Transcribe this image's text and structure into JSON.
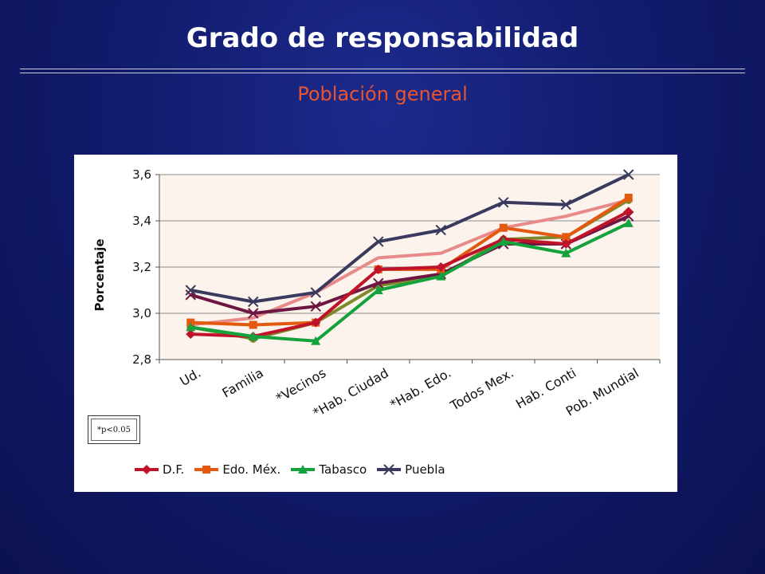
{
  "slide": {
    "title": "Grado de responsabilidad",
    "subtitle": "Población general",
    "footnote": "*p<0.05"
  },
  "colors": {
    "background": "#121c6e",
    "subtitle": "#e8552f",
    "plot_area": "#fcf3ec",
    "gridline": "#8c8c8c"
  },
  "chart_data": {
    "type": "line",
    "title": "",
    "xlabel": "",
    "ylabel": "Porcentaje",
    "ylim": [
      2.8,
      3.6
    ],
    "yticks": [
      "2,8",
      "3,0",
      "3,2",
      "3,4",
      "3,6"
    ],
    "grid": true,
    "legend_position": "bottom",
    "categories": [
      "Ud.",
      "Familia",
      "*Vecinos",
      "*Hab. Ciudad",
      "*Hab. Edo.",
      "Todos Mex.",
      "Hab. Conti",
      "Pob. Mundial"
    ],
    "series": [
      {
        "name": "D.F.",
        "color": "#c0122b",
        "marker": "diamond",
        "values": [
          2.91,
          2.9,
          2.96,
          3.19,
          3.2,
          3.32,
          3.3,
          3.44
        ],
        "legend": true
      },
      {
        "name": "Edo. Méx.",
        "color": "#e2590f",
        "marker": "square",
        "values": [
          2.96,
          2.95,
          2.96,
          3.19,
          3.19,
          3.37,
          3.33,
          3.5
        ],
        "legend": true
      },
      {
        "name": "Tabasco",
        "color": "#13a23c",
        "marker": "triangle",
        "values": [
          2.94,
          2.9,
          2.88,
          3.1,
          3.16,
          3.31,
          3.26,
          3.39
        ],
        "legend": true
      },
      {
        "name": "Puebla",
        "color": "#3a3a5e",
        "marker": "x",
        "values": [
          3.1,
          3.05,
          3.09,
          3.31,
          3.36,
          3.48,
          3.47,
          3.6
        ],
        "legend": true
      },
      {
        "name": "",
        "color": "#6e1642",
        "marker": "x",
        "values": [
          3.08,
          3.0,
          3.03,
          3.13,
          3.17,
          3.3,
          3.3,
          3.42
        ],
        "legend": false
      },
      {
        "name": "",
        "color": "#7d8a2c",
        "marker": "circle",
        "values": [
          2.94,
          2.89,
          2.96,
          3.12,
          3.16,
          3.32,
          3.33,
          3.49
        ],
        "legend": false
      },
      {
        "name": "",
        "color": "#e88a8a",
        "marker": "none",
        "values": [
          2.95,
          2.98,
          3.09,
          3.24,
          3.26,
          3.37,
          3.42,
          3.49
        ],
        "legend": false
      }
    ]
  }
}
